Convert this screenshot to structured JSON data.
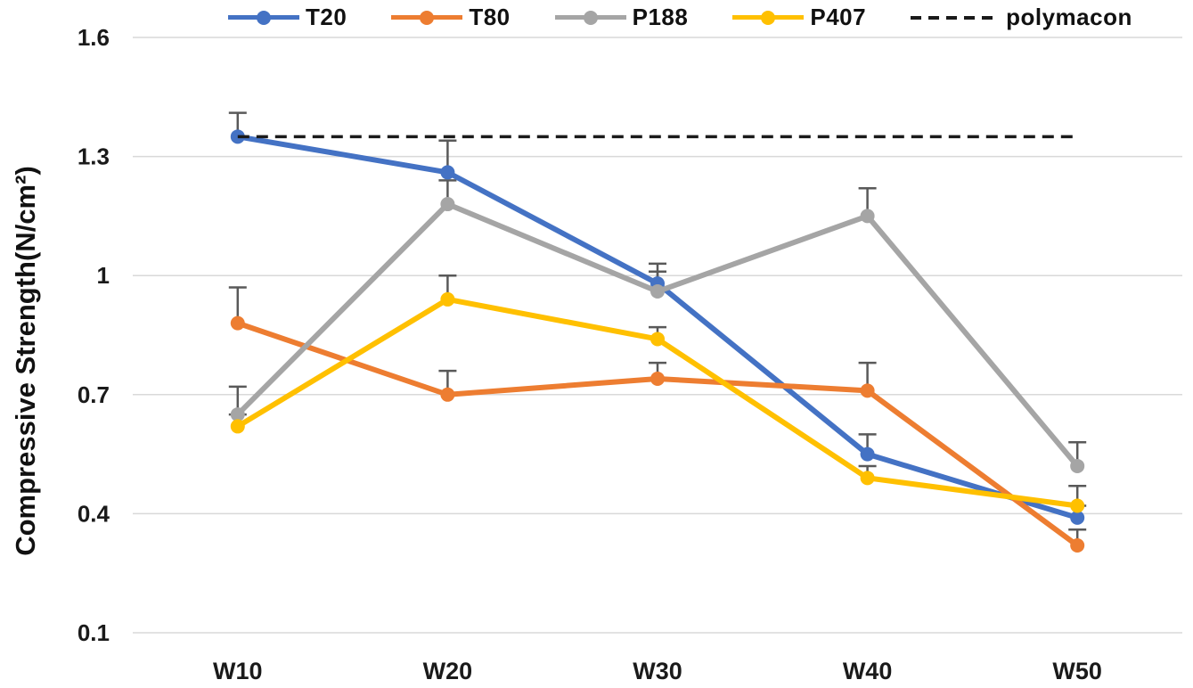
{
  "chart_data": {
    "type": "line",
    "title": "",
    "xlabel": "",
    "ylabel": "Compressive Strength(N/cm²)",
    "categories": [
      "W10",
      "W20",
      "W30",
      "W40",
      "W50"
    ],
    "series": [
      {
        "name": "T20",
        "color": "#4472C4",
        "values": [
          1.35,
          1.26,
          0.98,
          0.55,
          0.39
        ],
        "error_plus": [
          0.06,
          0.08,
          0.05,
          0.05,
          0.03
        ]
      },
      {
        "name": "T80",
        "color": "#ED7D31",
        "values": [
          0.88,
          0.7,
          0.74,
          0.71,
          0.32
        ],
        "error_plus": [
          0.09,
          0.06,
          0.04,
          0.07,
          0.04
        ]
      },
      {
        "name": "P188",
        "color": "#A5A5A5",
        "values": [
          0.65,
          1.18,
          0.96,
          1.15,
          0.52
        ],
        "error_plus": [
          0.07,
          0.06,
          0.05,
          0.07,
          0.06
        ]
      },
      {
        "name": "P407",
        "color": "#FFC000",
        "values": [
          0.62,
          0.94,
          0.84,
          0.49,
          0.42
        ],
        "error_plus": [
          0.03,
          0.06,
          0.03,
          0.03,
          0.05
        ]
      }
    ],
    "reference_line": {
      "name": "polymacon",
      "value": 1.35,
      "style": "dashed",
      "color": "#1a1a1a"
    },
    "y_ticks": [
      0.1,
      0.4,
      0.7,
      1,
      1.3,
      1.6
    ],
    "y_tick_labels": [
      "0.1",
      "0.4",
      "0.7",
      "1",
      "1.3",
      "1.6"
    ],
    "ylim": [
      0.1,
      1.6
    ],
    "grid": true,
    "legend_position": "top",
    "gridline_color": "#D9D9D9",
    "error_bar_color": "#595959",
    "tick_label_color": "#1a1a1a",
    "background_color": "#ffffff"
  },
  "legend": {
    "items": [
      {
        "label": "T20",
        "color": "#4472C4",
        "marker": "circle-line"
      },
      {
        "label": "T80",
        "color": "#ED7D31",
        "marker": "circle-line"
      },
      {
        "label": "P188",
        "color": "#A5A5A5",
        "marker": "circle-line"
      },
      {
        "label": "P407",
        "color": "#FFC000",
        "marker": "circle-line"
      },
      {
        "label": "polymacon",
        "color": "#1a1a1a",
        "marker": "dashed-line"
      }
    ]
  }
}
